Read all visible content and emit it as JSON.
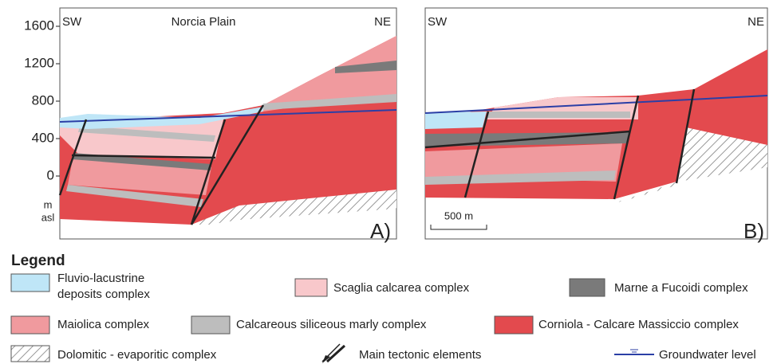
{
  "axis": {
    "ticks": [
      1600,
      1200,
      800,
      400,
      0
    ],
    "unit": [
      "m",
      "asl"
    ]
  },
  "panel_a": {
    "left": "SW",
    "right": "NE",
    "title": "Norcia Plain",
    "label": "A)"
  },
  "panel_b": {
    "left": "SW",
    "right": "NE",
    "label": "B)",
    "scale_bar": "500 m"
  },
  "legend": {
    "title": "Legend",
    "items": [
      {
        "lines": [
          "Fluvio-lacustrine",
          "deposits complex"
        ]
      },
      {
        "lines": [
          "Scaglia calcarea complex"
        ]
      },
      {
        "lines": [
          "Marne a Fucoidi complex"
        ]
      },
      {
        "lines": [
          "Maiolica complex"
        ]
      },
      {
        "lines": [
          "Calcareous siliceous marly complex"
        ]
      },
      {
        "lines": [
          "Corniola - Calcare Massiccio complex"
        ]
      },
      {
        "lines": [
          "Dolomitic - evaporitic complex"
        ]
      },
      {
        "lines": [
          "Main tectonic elements"
        ]
      },
      {
        "lines": [
          "Groundwater level"
        ]
      }
    ]
  }
}
